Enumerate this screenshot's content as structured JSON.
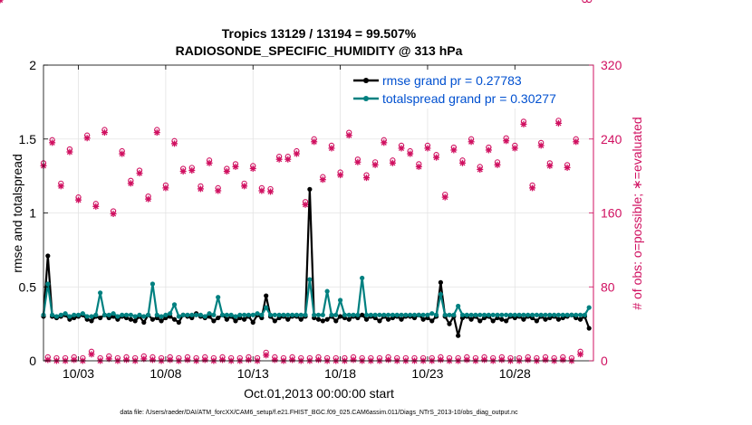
{
  "chart_data": {
    "type": "line",
    "title_line1": "Tropics 13129 / 13194 = 99.507%",
    "title_line2": "RADIOSONDE_SPECIFIC_HUMIDITY @ 313 hPa",
    "xlabel": "Oct.01,2013 00:00:00 start",
    "ylabel_left": "rmse and totalspread",
    "ylabel_right": "# of obs: o=possible; ∗=evaluated",
    "xlim": [
      1,
      32.5
    ],
    "ylim_left": [
      0,
      2
    ],
    "ylim_right": [
      0,
      320
    ],
    "x_ticks": [
      3,
      8,
      13,
      18,
      23,
      28
    ],
    "x_tick_labels": [
      "10/03",
      "10/08",
      "10/13",
      "10/18",
      "10/23",
      "10/28"
    ],
    "y_left_ticks": [
      0,
      0.5,
      1,
      1.5,
      2
    ],
    "y_left_tick_labels": [
      "0",
      "0.5",
      "1",
      "1.5",
      "2"
    ],
    "y_right_ticks": [
      0,
      80,
      160,
      240,
      320
    ],
    "y_right_tick_labels": [
      "0",
      "80",
      "160",
      "240",
      "320"
    ],
    "grid": true,
    "legend_position": "top-right",
    "x": [
      1.0,
      1.25,
      1.5,
      1.75,
      2.0,
      2.25,
      2.5,
      2.75,
      3.0,
      3.25,
      3.5,
      3.75,
      4.0,
      4.25,
      4.5,
      4.75,
      5.0,
      5.25,
      5.5,
      5.75,
      6.0,
      6.25,
      6.5,
      6.75,
      7.0,
      7.25,
      7.5,
      7.75,
      8.0,
      8.25,
      8.5,
      8.75,
      9.0,
      9.25,
      9.5,
      9.75,
      10.0,
      10.25,
      10.5,
      10.75,
      11.0,
      11.25,
      11.5,
      11.75,
      12.0,
      12.25,
      12.5,
      12.75,
      13.0,
      13.25,
      13.5,
      13.75,
      14.0,
      14.25,
      14.5,
      14.75,
      15.0,
      15.25,
      15.5,
      15.75,
      16.0,
      16.25,
      16.5,
      16.75,
      17.0,
      17.25,
      17.5,
      17.75,
      18.0,
      18.25,
      18.5,
      18.75,
      19.0,
      19.25,
      19.5,
      19.75,
      20.0,
      20.25,
      20.5,
      20.75,
      21.0,
      21.25,
      21.5,
      21.75,
      22.0,
      22.25,
      22.5,
      22.75,
      23.0,
      23.25,
      23.5,
      23.75,
      24.0,
      24.25,
      24.5,
      24.75,
      25.0,
      25.25,
      25.5,
      25.75,
      26.0,
      26.25,
      26.5,
      26.75,
      27.0,
      27.25,
      27.5,
      27.75,
      28.0,
      28.25,
      28.5,
      28.75,
      29.0,
      29.25,
      29.5,
      29.75,
      30.0,
      30.25,
      30.5,
      30.75,
      31.0,
      31.25,
      31.5,
      31.75,
      32.0,
      32.25
    ],
    "series": [
      {
        "name": "rmse grand pr = 0.27783",
        "color": "#000000",
        "values": [
          0.3,
          0.71,
          0.3,
          0.29,
          0.3,
          0.31,
          0.28,
          0.29,
          0.3,
          0.31,
          0.28,
          0.27,
          0.3,
          0.29,
          0.31,
          0.29,
          0.3,
          0.28,
          0.3,
          0.29,
          0.28,
          0.27,
          0.3,
          0.26,
          0.31,
          0.28,
          0.29,
          0.27,
          0.29,
          0.3,
          0.28,
          0.26,
          0.31,
          0.3,
          0.29,
          0.32,
          0.3,
          0.29,
          0.3,
          0.27,
          0.29,
          0.31,
          0.28,
          0.3,
          0.27,
          0.29,
          0.28,
          0.3,
          0.26,
          0.31,
          0.29,
          0.44,
          0.3,
          0.27,
          0.29,
          0.3,
          0.28,
          0.3,
          0.3,
          0.28,
          0.3,
          1.16,
          0.29,
          0.28,
          0.27,
          0.28,
          0.3,
          0.27,
          0.3,
          0.29,
          0.28,
          0.3,
          0.29,
          0.31,
          0.28,
          0.3,
          0.29,
          0.27,
          0.3,
          0.28,
          0.29,
          0.3,
          0.28,
          0.3,
          0.3,
          0.29,
          0.31,
          0.28,
          0.29,
          0.27,
          0.3,
          0.53,
          0.3,
          0.25,
          0.3,
          0.17,
          0.29,
          0.3,
          0.28,
          0.3,
          0.27,
          0.29,
          0.3,
          0.27,
          0.29,
          0.28,
          0.27,
          0.3,
          0.29,
          0.3,
          0.28,
          0.3,
          0.29,
          0.27,
          0.3,
          0.28,
          0.29,
          0.3,
          0.28,
          0.29,
          0.3,
          0.31,
          0.29,
          0.28,
          0.3,
          0.22
        ]
      },
      {
        "name": "totalspread grand pr = 0.30277",
        "color": "#008080",
        "values": [
          0.31,
          0.52,
          0.31,
          0.3,
          0.31,
          0.32,
          0.3,
          0.31,
          0.31,
          0.32,
          0.3,
          0.3,
          0.31,
          0.46,
          0.31,
          0.31,
          0.32,
          0.3,
          0.31,
          0.31,
          0.31,
          0.3,
          0.31,
          0.3,
          0.31,
          0.52,
          0.31,
          0.3,
          0.31,
          0.32,
          0.38,
          0.3,
          0.31,
          0.31,
          0.31,
          0.31,
          0.31,
          0.3,
          0.32,
          0.31,
          0.43,
          0.31,
          0.31,
          0.31,
          0.3,
          0.31,
          0.31,
          0.31,
          0.31,
          0.32,
          0.31,
          0.36,
          0.31,
          0.31,
          0.31,
          0.31,
          0.31,
          0.31,
          0.31,
          0.31,
          0.31,
          0.55,
          0.31,
          0.31,
          0.31,
          0.47,
          0.31,
          0.31,
          0.41,
          0.31,
          0.31,
          0.31,
          0.31,
          0.56,
          0.31,
          0.31,
          0.31,
          0.31,
          0.31,
          0.31,
          0.31,
          0.31,
          0.31,
          0.31,
          0.31,
          0.31,
          0.31,
          0.31,
          0.31,
          0.32,
          0.31,
          0.45,
          0.31,
          0.31,
          0.31,
          0.37,
          0.31,
          0.31,
          0.31,
          0.31,
          0.31,
          0.31,
          0.31,
          0.31,
          0.31,
          0.31,
          0.31,
          0.31,
          0.31,
          0.31,
          0.31,
          0.31,
          0.31,
          0.31,
          0.31,
          0.31,
          0.31,
          0.31,
          0.31,
          0.31,
          0.31,
          0.31,
          0.31,
          0.31,
          0.31,
          0.36
        ]
      }
    ],
    "obs_series": {
      "name": "# of obs (possible / evaluated)",
      "color": "#d01060",
      "x": [
        1.0,
        1.25,
        1.5,
        1.75,
        2.0,
        2.25,
        2.5,
        2.75,
        3.0,
        3.25,
        3.5,
        3.75,
        4.0,
        4.25,
        4.5,
        4.75,
        5.0,
        5.25,
        5.5,
        5.75,
        6.0,
        6.25,
        6.5,
        6.75,
        7.0,
        7.25,
        7.5,
        7.75,
        8.0,
        8.25,
        8.5,
        8.75,
        9.0,
        9.25,
        9.5,
        9.75,
        10.0,
        10.25,
        10.5,
        10.75,
        11.0,
        11.25,
        11.5,
        11.75,
        12.0,
        12.25,
        12.5,
        12.75,
        13.0,
        13.25,
        13.5,
        13.75,
        14.0,
        14.25,
        14.5,
        14.75,
        15.0,
        15.25,
        15.5,
        15.75,
        16.0,
        16.25,
        16.5,
        16.75,
        17.0,
        17.25,
        17.5,
        17.75,
        18.0,
        18.25,
        18.5,
        18.75,
        19.0,
        19.25,
        19.5,
        19.75,
        20.0,
        20.25,
        20.5,
        20.75,
        21.0,
        21.25,
        21.5,
        21.75,
        22.0,
        22.25,
        22.5,
        22.75,
        23.0,
        23.25,
        23.5,
        23.75,
        24.0,
        24.25,
        24.5,
        24.75,
        25.0,
        25.25,
        25.5,
        25.75,
        26.0,
        26.25,
        26.5,
        26.75,
        27.0,
        27.25,
        27.5,
        27.75,
        28.0,
        28.25,
        28.5,
        28.75,
        29.0,
        29.25,
        29.5,
        29.75,
        30.0,
        30.25,
        30.5,
        30.75,
        31.0,
        31.25,
        31.5,
        31.75,
        32.0,
        32.25
      ],
      "possible": [
        212,
        2,
        237,
        1,
        190,
        1,
        227,
        2,
        175,
        1,
        242,
        8,
        168,
        1,
        248,
        3,
        160,
        1,
        225,
        2,
        193,
        1,
        204,
        3,
        176,
        2,
        248,
        1,
        188,
        2,
        236,
        1,
        206,
        2,
        207,
        1,
        187,
        2,
        215,
        1,
        185,
        2,
        206,
        1,
        211,
        1,
        190,
        2,
        209,
        1,
        185,
        7,
        184,
        2,
        219,
        1,
        219,
        2,
        225,
        1,
        170,
        1,
        238,
        2,
        197,
        1,
        231,
        1,
        202,
        1,
        245,
        2,
        216,
        1,
        199,
        1,
        213,
        1,
        237,
        2,
        215,
        1,
        231,
        1,
        225,
        1,
        211,
        1,
        231,
        1,
        221,
        2,
        178,
        1,
        229,
        1,
        215,
        2,
        238,
        1,
        208,
        2,
        229,
        1,
        213,
        2,
        239,
        1,
        231,
        1,
        257,
        2,
        188,
        1,
        234,
        2,
        212,
        1,
        258,
        2,
        210,
        1,
        238,
        8
      ],
      "evaluated": [
        212,
        2,
        237,
        1,
        190,
        1,
        227,
        2,
        175,
        1,
        242,
        8,
        168,
        1,
        248,
        3,
        160,
        1,
        225,
        2,
        193,
        1,
        204,
        3,
        176,
        2,
        248,
        1,
        188,
        2,
        236,
        1,
        206,
        2,
        207,
        1,
        187,
        2,
        215,
        1,
        185,
        2,
        206,
        1,
        211,
        1,
        190,
        2,
        209,
        1,
        185,
        7,
        184,
        2,
        219,
        1,
        219,
        2,
        225,
        1,
        170,
        1,
        238,
        2,
        197,
        1,
        231,
        1,
        202,
        1,
        245,
        2,
        216,
        1,
        199,
        1,
        213,
        1,
        237,
        2,
        215,
        1,
        231,
        1,
        225,
        1,
        211,
        1,
        231,
        1,
        221,
        2,
        178,
        1,
        229,
        1,
        215,
        2,
        238,
        1,
        208,
        2,
        229,
        1,
        213,
        2,
        239,
        1,
        231,
        1,
        257,
        2,
        188,
        1,
        234,
        2,
        212,
        1,
        258,
        2,
        210,
        1,
        238,
        8
      ]
    },
    "footnote": "data file: /Users/raeder/DAI/ATM_forcXX/CAM6_setup/f.e21.FHIST_BGC.f09_025.CAM6assim.011/Diags_NTrS_2013-10/obs_diag_output.nc"
  }
}
